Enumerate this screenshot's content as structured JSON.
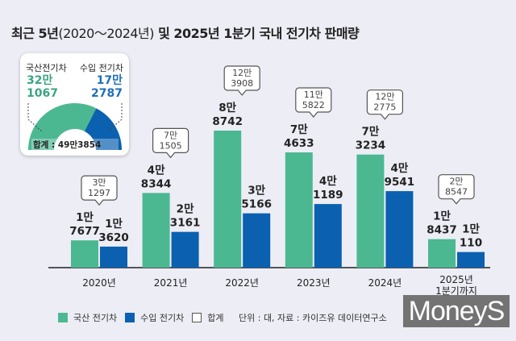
{
  "title_main_a": "최근 5년",
  "title_paren": "(2020～2024년)",
  "title_main_b": " 및 2025년 1분기 국내 전기차 판매량",
  "colors": {
    "domestic": "#4cb892",
    "import": "#0b60b0",
    "background": "#ecedf5"
  },
  "inset": {
    "domestic_label": "국산전기차",
    "domestic_value_1": "32만",
    "domestic_value_2": "1067",
    "import_label": "수입 전기차",
    "import_value_1": "17만",
    "import_value_2": "2787",
    "total_text": "합계 : 49만3854",
    "domestic": 321067,
    "import": 172787
  },
  "legend": {
    "domestic": "국산 전기차",
    "import": "수입 전기차",
    "total": "합계"
  },
  "source": "단위 : 대, 자료 : 카이즈유 데이터연구소",
  "logo": "MoneyS",
  "chart_data": {
    "type": "bar",
    "categories": [
      "2020년",
      "2021년",
      "2022년",
      "2023년",
      "2024년",
      "2025년\n1분기까지"
    ],
    "series": [
      {
        "name": "국산 전기차",
        "values": [
          17677,
          48344,
          88742,
          74633,
          73234,
          18437
        ],
        "labels": [
          [
            "1만",
            "7677"
          ],
          [
            "4만",
            "8344"
          ],
          [
            "8만",
            "8742"
          ],
          [
            "7만",
            "4633"
          ],
          [
            "7만",
            "3234"
          ],
          [
            "1만",
            "8437"
          ]
        ]
      },
      {
        "name": "수입 전기차",
        "values": [
          13620,
          23161,
          35166,
          41189,
          49541,
          10110
        ],
        "labels": [
          [
            "1만",
            "3620"
          ],
          [
            "2만",
            "3161"
          ],
          [
            "3만",
            "5166"
          ],
          [
            "4만",
            "1189"
          ],
          [
            "4만",
            "9541"
          ],
          [
            "1만",
            "110"
          ]
        ]
      }
    ],
    "totals": {
      "name": "합계",
      "values": [
        31297,
        71505,
        123908,
        115822,
        122775,
        28547
      ],
      "labels": [
        [
          "3만",
          "1297"
        ],
        [
          "7만",
          "1505"
        ],
        [
          "12만",
          "3908"
        ],
        [
          "11만",
          "5822"
        ],
        [
          "12만",
          "2775"
        ],
        [
          "2만",
          "8547"
        ]
      ]
    },
    "unit": "대"
  }
}
